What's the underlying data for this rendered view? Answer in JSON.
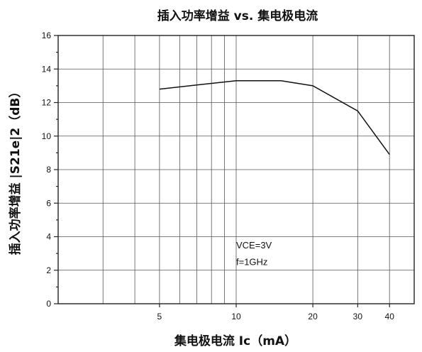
{
  "chart_data": {
    "type": "line",
    "title": "插入功率增益 vs. 集电极电流",
    "xlabel": "集电极电流  Ic（mA）",
    "ylabel": "插入功率增益 |S21e|2（dB）",
    "x_scale": "log",
    "xlim": [
      2,
      50
    ],
    "ylim": [
      0,
      16
    ],
    "x_ticks": [
      5,
      10,
      20,
      30,
      40
    ],
    "x_tick_labels": [
      "5",
      "10",
      "20",
      "30",
      "40"
    ],
    "x_grid": [
      2,
      3,
      4,
      5,
      6,
      7,
      8,
      9,
      10,
      20,
      30,
      40,
      50
    ],
    "y_ticks": [
      0,
      2,
      4,
      6,
      8,
      10,
      12,
      14,
      16
    ],
    "y_tick_labels": [
      "0",
      "2",
      "4",
      "6",
      "8",
      "10",
      "12",
      "14",
      "16"
    ],
    "y_minor_step": 1,
    "grid": true,
    "series": [
      {
        "x": [
          5,
          7,
          10,
          15,
          20,
          30,
          40
        ],
        "y": [
          12.8,
          13.05,
          13.3,
          13.3,
          13.0,
          11.5,
          8.9
        ]
      }
    ],
    "annotations": [
      {
        "text": "VCE=3V",
        "x": 10,
        "y": 3.3
      },
      {
        "text": "f=1GHz",
        "x": 10,
        "y": 2.3
      }
    ]
  }
}
